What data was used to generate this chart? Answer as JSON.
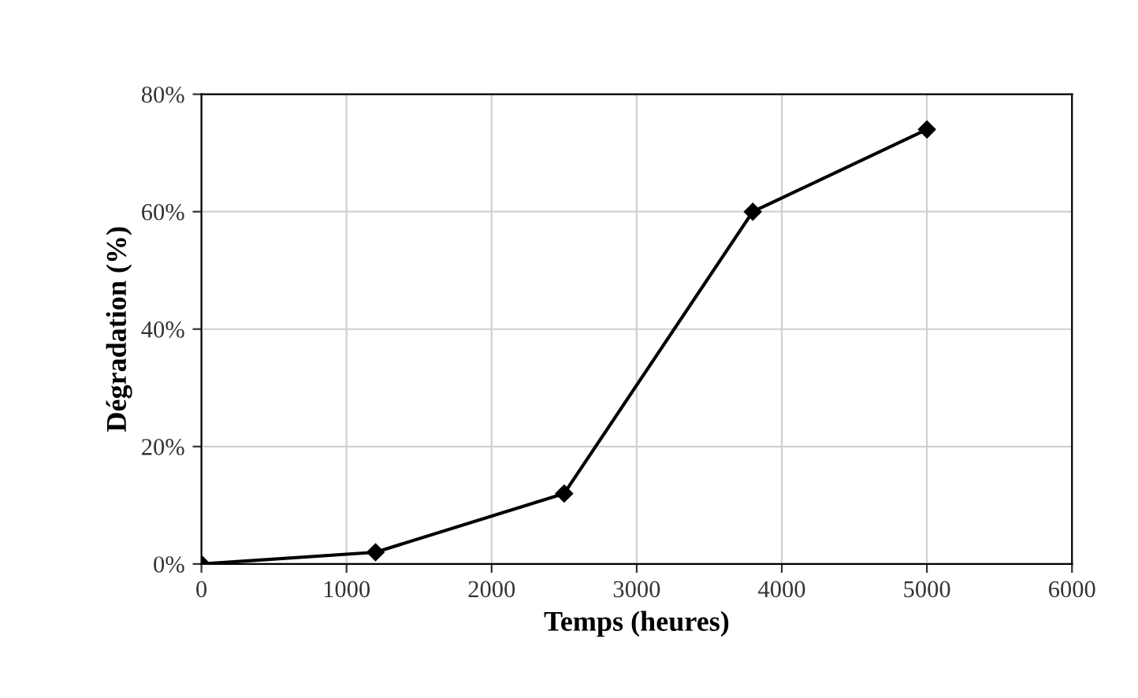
{
  "chart_data": {
    "type": "line",
    "xlabel": "Temps (heures)",
    "ylabel": "Dégradation (%)",
    "x": [
      0,
      1200,
      2500,
      3800,
      5000
    ],
    "series": [
      {
        "color": "#000000",
        "values": [
          0,
          2,
          12,
          60,
          74
        ]
      }
    ],
    "xlim": [
      0,
      6000
    ],
    "xticks": [
      0,
      1000,
      2000,
      3000,
      4000,
      5000,
      6000
    ],
    "ylim": [
      0,
      80
    ],
    "yticks": [
      {
        "value": 0,
        "label": "0%"
      },
      {
        "value": 20,
        "label": "20%"
      },
      {
        "value": 40,
        "label": "40%"
      },
      {
        "value": 60,
        "label": "60%"
      },
      {
        "value": 80,
        "label": "80%"
      }
    ],
    "grid": true,
    "marker": "diamond",
    "line_style": "solid",
    "legend": false
  }
}
